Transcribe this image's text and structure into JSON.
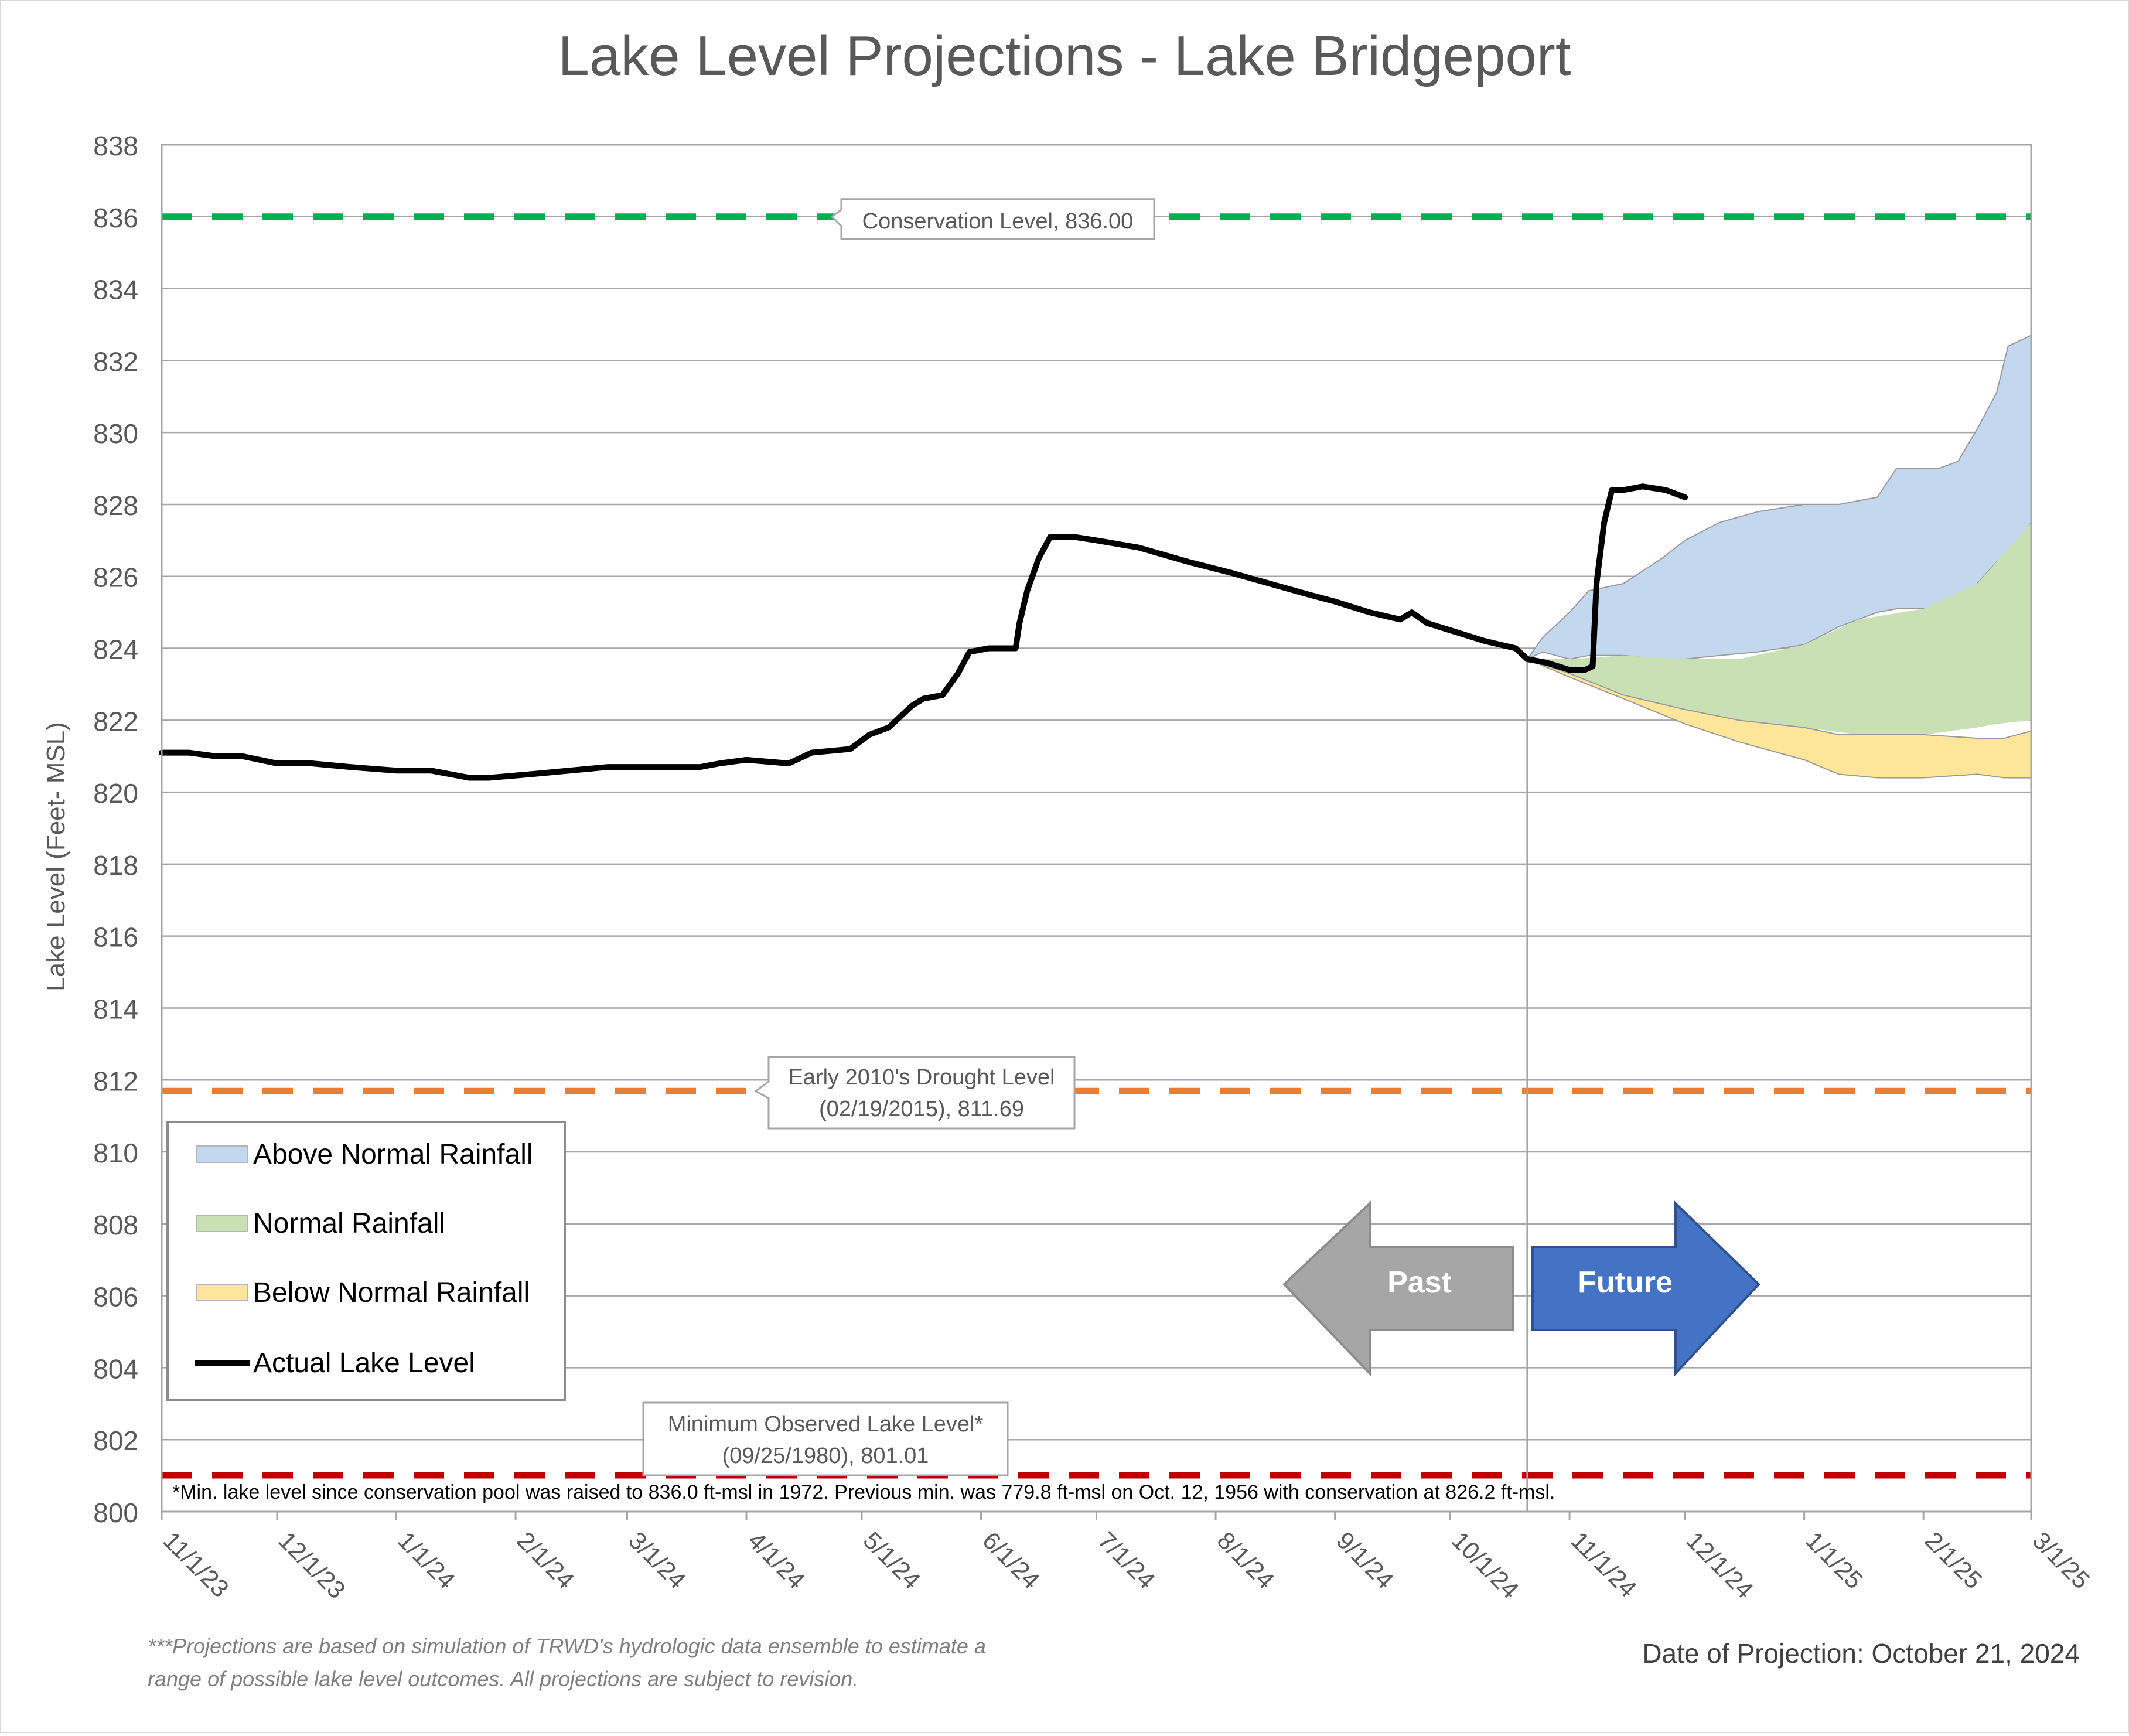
{
  "title": "Lake Level Projections - Lake Bridgeport",
  "ylabel": "Lake Level (Feet- MSL)",
  "footnote_projection": "***Projections are based on simulation of TRWD's hydrologic data ensemble to estimate a range of possible lake level outcomes.  All projections are subject to revision.",
  "footnote_projection_lines": [
    "***Projections are based on simulation of TRWD's hydrologic data ensemble to estimate a",
    "range of possible lake level outcomes.  All projections are subject to revision."
  ],
  "date_of_projection": "Date of Projection: October 21, 2024",
  "min_note": "*Min. lake level since conservation pool was raised to 836.0 ft-msl in 1972.  Previous min. was 779.8 ft-msl on Oct. 12, 1956 with conservation at 826.2 ft-msl.",
  "arrows": {
    "past": "Past",
    "future": "Future"
  },
  "colors": {
    "above": "#c3d7ee",
    "above_stroke": "#9a9a9a",
    "normal": "#c9e0b4",
    "below": "#fde59a",
    "actual": "#000000",
    "conservation": "#00b050",
    "drought": "#ed7d31",
    "minimum": "#c00000",
    "past_arrow": "#a6a6a6",
    "future_arrow": "#4472c4",
    "grid": "#a6a6a6",
    "text": "#595959"
  },
  "chart_data": {
    "type": "line",
    "title": "Lake Level Projections - Lake Bridgeport",
    "xlabel": "",
    "ylabel": "Lake Level (Feet- MSL)",
    "xlim": [
      "2023-11-01",
      "2025-03-01"
    ],
    "ylim": [
      800,
      838
    ],
    "yticks": [
      800,
      802,
      804,
      806,
      808,
      810,
      812,
      814,
      816,
      818,
      820,
      822,
      824,
      826,
      828,
      830,
      832,
      834,
      836,
      838
    ],
    "xticks": [
      {
        "date": "2023-11-01",
        "label": "11/1/23"
      },
      {
        "date": "2023-12-01",
        "label": "12/1/23"
      },
      {
        "date": "2024-01-01",
        "label": "1/1/24"
      },
      {
        "date": "2024-02-01",
        "label": "2/1/24"
      },
      {
        "date": "2024-03-01",
        "label": "3/1/24"
      },
      {
        "date": "2024-04-01",
        "label": "4/1/24"
      },
      {
        "date": "2024-05-01",
        "label": "5/1/24"
      },
      {
        "date": "2024-06-01",
        "label": "6/1/24"
      },
      {
        "date": "2024-07-01",
        "label": "7/1/24"
      },
      {
        "date": "2024-08-01",
        "label": "8/1/24"
      },
      {
        "date": "2024-09-01",
        "label": "9/1/24"
      },
      {
        "date": "2024-10-01",
        "label": "10/1/24"
      },
      {
        "date": "2024-11-01",
        "label": "11/1/24"
      },
      {
        "date": "2024-12-01",
        "label": "12/1/24"
      },
      {
        "date": "2025-01-01",
        "label": "1/1/25"
      },
      {
        "date": "2025-02-01",
        "label": "2/1/25"
      },
      {
        "date": "2025-03-01",
        "label": "3/1/25"
      }
    ],
    "grid": true,
    "projection_date": "2024-10-21",
    "reference_lines": [
      {
        "name": "Conservation Level",
        "value": 836.0,
        "label": "Conservation Level, 836.00",
        "color": "#00b050"
      },
      {
        "name": "Early 2010's Drought Level",
        "value": 811.69,
        "label": "Early 2010's Drought Level (02/19/2015), 811.69",
        "label_lines": [
          "Early 2010's Drought Level",
          "(02/19/2015), 811.69"
        ],
        "color": "#ed7d31"
      },
      {
        "name": "Minimum Observed Lake Level",
        "value": 801.01,
        "label": "Minimum Observed Lake Level* (09/25/1980), 801.01",
        "label_lines": [
          "Minimum Observed Lake Level*",
          "(09/25/1980), 801.01"
        ],
        "color": "#c00000"
      }
    ],
    "legend": {
      "position": "bottom-left",
      "entries": [
        "Above Normal Rainfall",
        "Normal Rainfall",
        "Below Normal Rainfall",
        "Actual Lake Level"
      ]
    },
    "series": [
      {
        "name": "Actual Lake Level",
        "type": "line",
        "points": [
          [
            "2023-11-01",
            821.1
          ],
          [
            "2023-11-08",
            821.1
          ],
          [
            "2023-11-15",
            821.0
          ],
          [
            "2023-11-22",
            821.0
          ],
          [
            "2023-12-01",
            820.8
          ],
          [
            "2023-12-10",
            820.8
          ],
          [
            "2023-12-20",
            820.7
          ],
          [
            "2024-01-01",
            820.6
          ],
          [
            "2024-01-10",
            820.6
          ],
          [
            "2024-01-20",
            820.4
          ],
          [
            "2024-01-25",
            820.4
          ],
          [
            "2024-02-05",
            820.5
          ],
          [
            "2024-02-15",
            820.6
          ],
          [
            "2024-02-25",
            820.7
          ],
          [
            "2024-03-01",
            820.7
          ],
          [
            "2024-03-10",
            820.7
          ],
          [
            "2024-03-20",
            820.7
          ],
          [
            "2024-03-25",
            820.8
          ],
          [
            "2024-04-01",
            820.9
          ],
          [
            "2024-04-12",
            820.8
          ],
          [
            "2024-04-18",
            821.1
          ],
          [
            "2024-04-28",
            821.2
          ],
          [
            "2024-05-03",
            821.6
          ],
          [
            "2024-05-08",
            821.8
          ],
          [
            "2024-05-14",
            822.4
          ],
          [
            "2024-05-17",
            822.6
          ],
          [
            "2024-05-22",
            822.7
          ],
          [
            "2024-05-26",
            823.3
          ],
          [
            "2024-05-29",
            823.9
          ],
          [
            "2024-06-03",
            824.0
          ],
          [
            "2024-06-10",
            824.0
          ],
          [
            "2024-06-11",
            824.7
          ],
          [
            "2024-06-13",
            825.6
          ],
          [
            "2024-06-16",
            826.5
          ],
          [
            "2024-06-19",
            827.1
          ],
          [
            "2024-06-25",
            827.1
          ],
          [
            "2024-07-01",
            827.0
          ],
          [
            "2024-07-12",
            826.8
          ],
          [
            "2024-07-25",
            826.4
          ],
          [
            "2024-08-05",
            826.1
          ],
          [
            "2024-08-15",
            825.8
          ],
          [
            "2024-08-25",
            825.5
          ],
          [
            "2024-09-01",
            825.3
          ],
          [
            "2024-09-10",
            825.0
          ],
          [
            "2024-09-18",
            824.8
          ],
          [
            "2024-09-21",
            825.0
          ],
          [
            "2024-09-25",
            824.7
          ],
          [
            "2024-10-01",
            824.5
          ],
          [
            "2024-10-10",
            824.2
          ],
          [
            "2024-10-18",
            824.0
          ],
          [
            "2024-10-21",
            823.7
          ],
          [
            "2024-10-26",
            823.6
          ],
          [
            "2024-11-01",
            823.4
          ],
          [
            "2024-11-05",
            823.4
          ],
          [
            "2024-11-07",
            823.5
          ],
          [
            "2024-11-08",
            825.8
          ],
          [
            "2024-11-10",
            827.5
          ],
          [
            "2024-11-12",
            828.4
          ],
          [
            "2024-11-15",
            828.4
          ],
          [
            "2024-11-20",
            828.5
          ],
          [
            "2024-11-26",
            828.4
          ],
          [
            "2024-12-01",
            828.2
          ]
        ]
      },
      {
        "name": "Above Normal Rainfall",
        "type": "band",
        "points": [
          [
            "2024-10-21",
            823.7,
            823.7
          ],
          [
            "2024-10-25",
            823.9,
            824.3
          ],
          [
            "2024-11-01",
            823.7,
            825.0
          ],
          [
            "2024-11-06",
            823.8,
            825.6
          ],
          [
            "2024-11-15",
            823.8,
            825.8
          ],
          [
            "2024-11-25",
            823.7,
            826.5
          ],
          [
            "2024-12-01",
            823.7,
            827.0
          ],
          [
            "2024-12-10",
            823.8,
            827.5
          ],
          [
            "2024-12-20",
            823.9,
            827.8
          ],
          [
            "2025-01-01",
            824.1,
            828.0
          ],
          [
            "2025-01-10",
            824.6,
            828.0
          ],
          [
            "2025-01-20",
            825.0,
            828.2
          ],
          [
            "2025-01-25",
            825.1,
            829.0
          ],
          [
            "2025-02-05",
            825.1,
            829.0
          ],
          [
            "2025-02-10",
            825.2,
            829.2
          ],
          [
            "2025-02-15",
            825.8,
            830.1
          ],
          [
            "2025-02-20",
            826.4,
            831.1
          ],
          [
            "2025-02-23",
            826.6,
            832.4
          ],
          [
            "2025-03-01",
            827.5,
            832.7
          ]
        ]
      },
      {
        "name": "Normal Rainfall",
        "type": "band",
        "points": [
          [
            "2024-10-21",
            823.7,
            823.7
          ],
          [
            "2024-11-01",
            823.3,
            823.7
          ],
          [
            "2024-11-15",
            822.7,
            823.8
          ],
          [
            "2024-12-01",
            822.3,
            823.7
          ],
          [
            "2024-12-15",
            822.0,
            823.7
          ],
          [
            "2025-01-01",
            821.8,
            824.1
          ],
          [
            "2025-01-15",
            821.6,
            824.8
          ],
          [
            "2025-02-01",
            821.6,
            825.1
          ],
          [
            "2025-02-15",
            821.8,
            825.8
          ],
          [
            "2025-02-20",
            821.9,
            826.4
          ],
          [
            "2025-03-01",
            822.0,
            827.5
          ]
        ]
      },
      {
        "name": "Below Normal Rainfall",
        "type": "band",
        "points": [
          [
            "2024-10-21",
            823.7,
            823.7
          ],
          [
            "2024-11-01",
            823.2,
            823.3
          ],
          [
            "2024-11-15",
            822.6,
            822.7
          ],
          [
            "2024-12-01",
            821.9,
            822.3
          ],
          [
            "2024-12-15",
            821.4,
            822.0
          ],
          [
            "2025-01-01",
            820.9,
            821.8
          ],
          [
            "2025-01-10",
            820.5,
            821.6
          ],
          [
            "2025-01-20",
            820.4,
            821.6
          ],
          [
            "2025-02-01",
            820.4,
            821.6
          ],
          [
            "2025-02-15",
            820.5,
            821.5
          ],
          [
            "2025-02-22",
            820.4,
            821.5
          ],
          [
            "2025-03-01",
            820.4,
            821.7
          ]
        ]
      }
    ]
  }
}
